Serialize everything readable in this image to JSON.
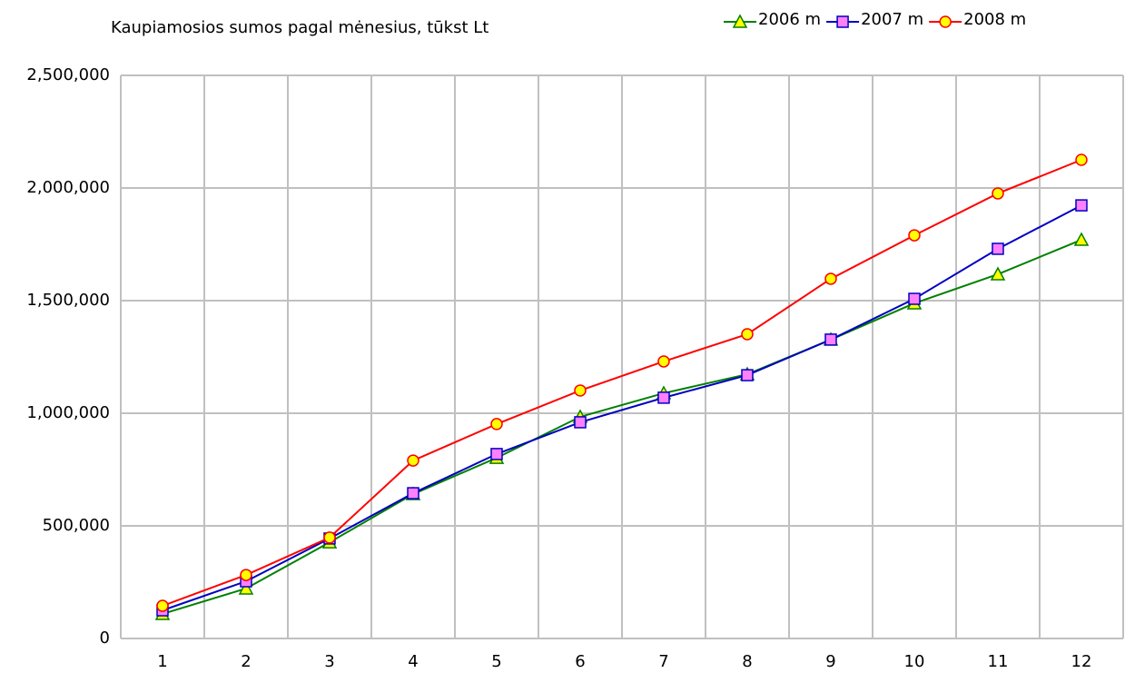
{
  "chart_data": {
    "type": "line",
    "title": "Kaupiamosios sumos pagal mėnesius, tūkst Lt",
    "categories": [
      "1",
      "2",
      "3",
      "4",
      "5",
      "6",
      "7",
      "8",
      "9",
      "10",
      "11",
      "12"
    ],
    "series": [
      {
        "name": "2006 m",
        "color": "#008000",
        "marker": "triangle",
        "marker_fill": "#ffff00",
        "values": [
          109000,
          222000,
          427000,
          641000,
          802000,
          984000,
          1089000,
          1173000,
          1327000,
          1488000,
          1617000,
          1770000
        ]
      },
      {
        "name": "2007 m",
        "color": "#0000c0",
        "marker": "square",
        "marker_fill": "#ff80ff",
        "values": [
          125000,
          254000,
          444000,
          645000,
          819000,
          960000,
          1069000,
          1169000,
          1327000,
          1508000,
          1730000,
          1923000
        ]
      },
      {
        "name": "2008 m",
        "color": "#ff0000",
        "marker": "circle",
        "marker_fill": "#ffff00",
        "values": [
          145000,
          282000,
          448000,
          790000,
          952000,
          1101000,
          1230000,
          1351000,
          1597000,
          1790000,
          1976000,
          2125000
        ]
      }
    ],
    "ylim": [
      0,
      2500000
    ],
    "yticks": [
      0,
      {
        "value": 500000,
        "label": "500,000"
      },
      {
        "value": 1000000,
        "label": "1,000,000"
      },
      {
        "value": 1500000,
        "label": "1,500,000"
      },
      {
        "value": 2000000,
        "label": "2,000,000"
      },
      {
        "value": 2500000,
        "label": "2,500,000"
      }
    ],
    "grid": true,
    "legend": "top-right"
  }
}
